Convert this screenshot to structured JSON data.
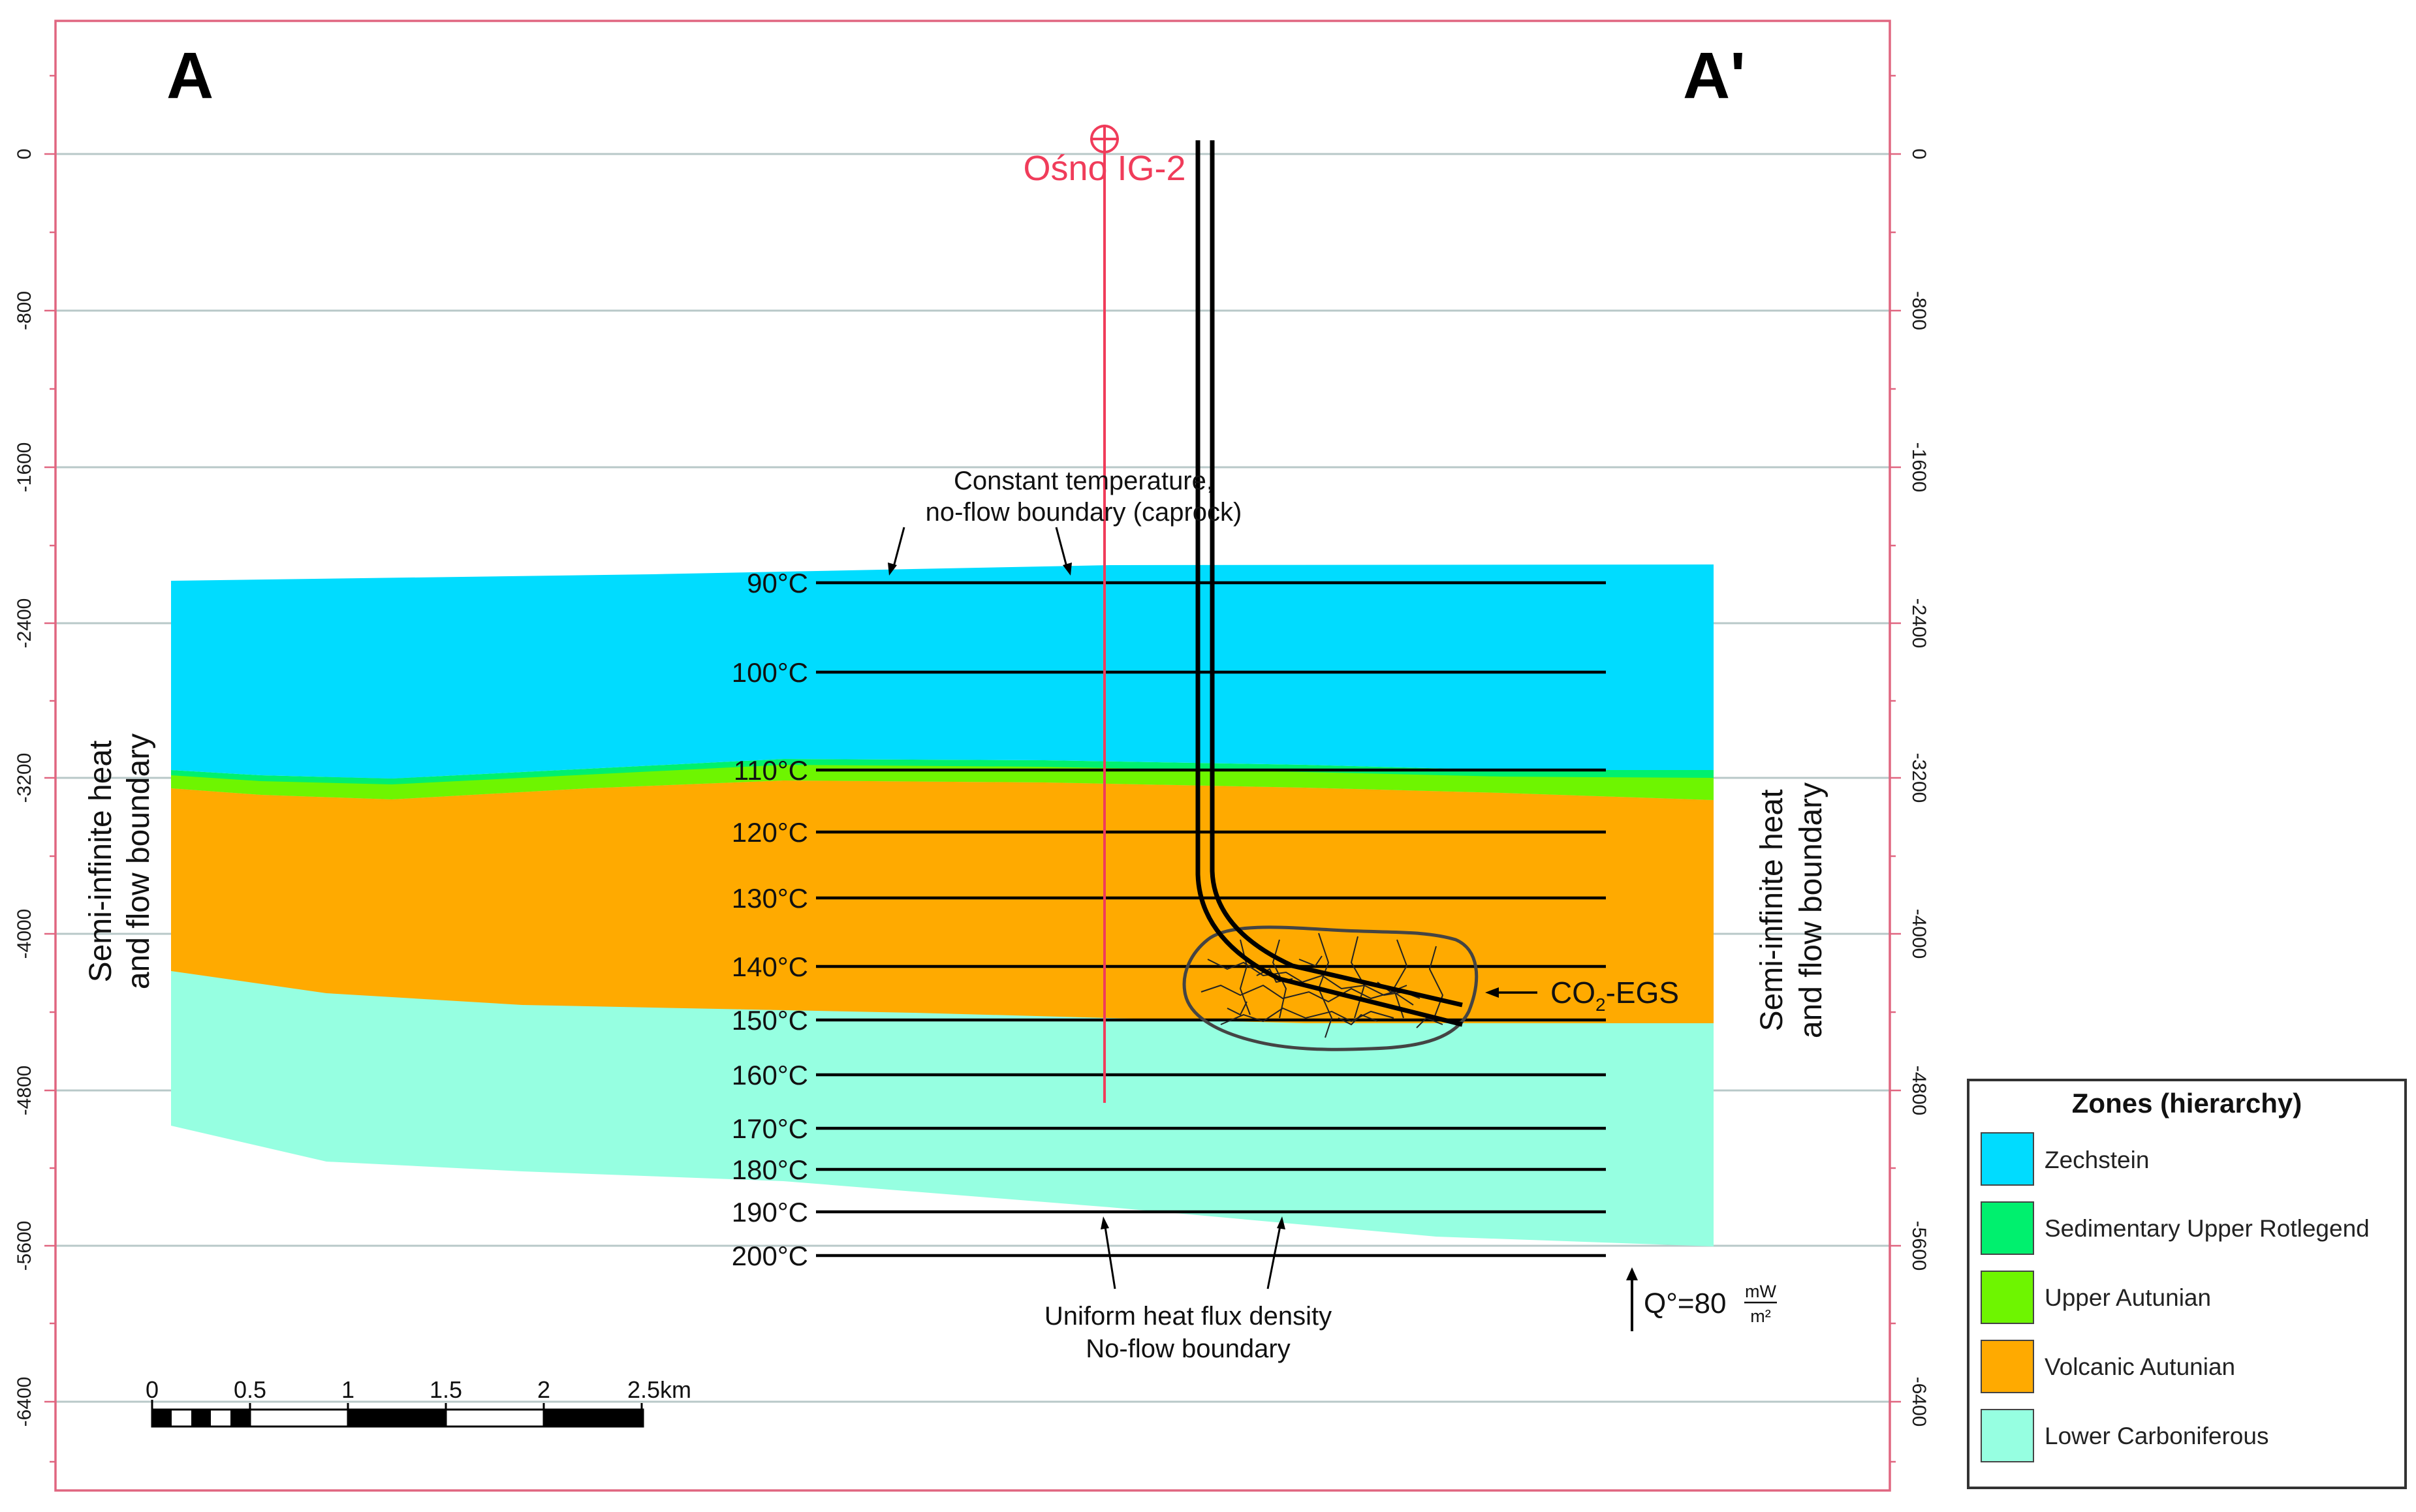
{
  "section": {
    "left_label": "A",
    "right_label": "A'"
  },
  "well": {
    "name": "Ośno IG-2",
    "color": "#f03c5a"
  },
  "depth_axis": {
    "ticks": [
      "0",
      "-800",
      "-1600",
      "-2400",
      "-3200",
      "-4000",
      "-4800",
      "-5600",
      "-6400"
    ]
  },
  "isotherms": [
    "90°C",
    "100°C",
    "110°C",
    "120°C",
    "130°C",
    "140°C",
    "150°C",
    "160°C",
    "170°C",
    "180°C",
    "190°C",
    "200°C"
  ],
  "annotations": {
    "top_boundary_l1": "Constant temperature,",
    "top_boundary_l2": "no-flow boundary (caprock)",
    "bottom_boundary_l1": "Uniform heat flux density",
    "bottom_boundary_l2": "No-flow boundary",
    "side_l1": "Semi-infinite heat",
    "side_l2": "and flow boundary",
    "egs_prefix": "CO",
    "egs_sub": "2",
    "egs_suffix": "-EGS",
    "heat_flux_prefix": "Q°=80",
    "heat_flux_num": "mW",
    "heat_flux_den": "m²"
  },
  "scale_bar": {
    "ticks": [
      "0",
      "0.5",
      "1",
      "1.5",
      "2",
      "2.5km"
    ]
  },
  "legend": {
    "title": "Zones (hierarchy)",
    "items": [
      {
        "label": "Zechstein",
        "color": "#00dcff"
      },
      {
        "label": "Sedimentary Upper Rotlegend",
        "color": "#00f06e"
      },
      {
        "label": "Upper Autunian",
        "color": "#6ef500"
      },
      {
        "label": "Volcanic Autunian",
        "color": "#ffaa00"
      },
      {
        "label": "Lower Carboniferous",
        "color": "#96ffe1"
      }
    ]
  }
}
